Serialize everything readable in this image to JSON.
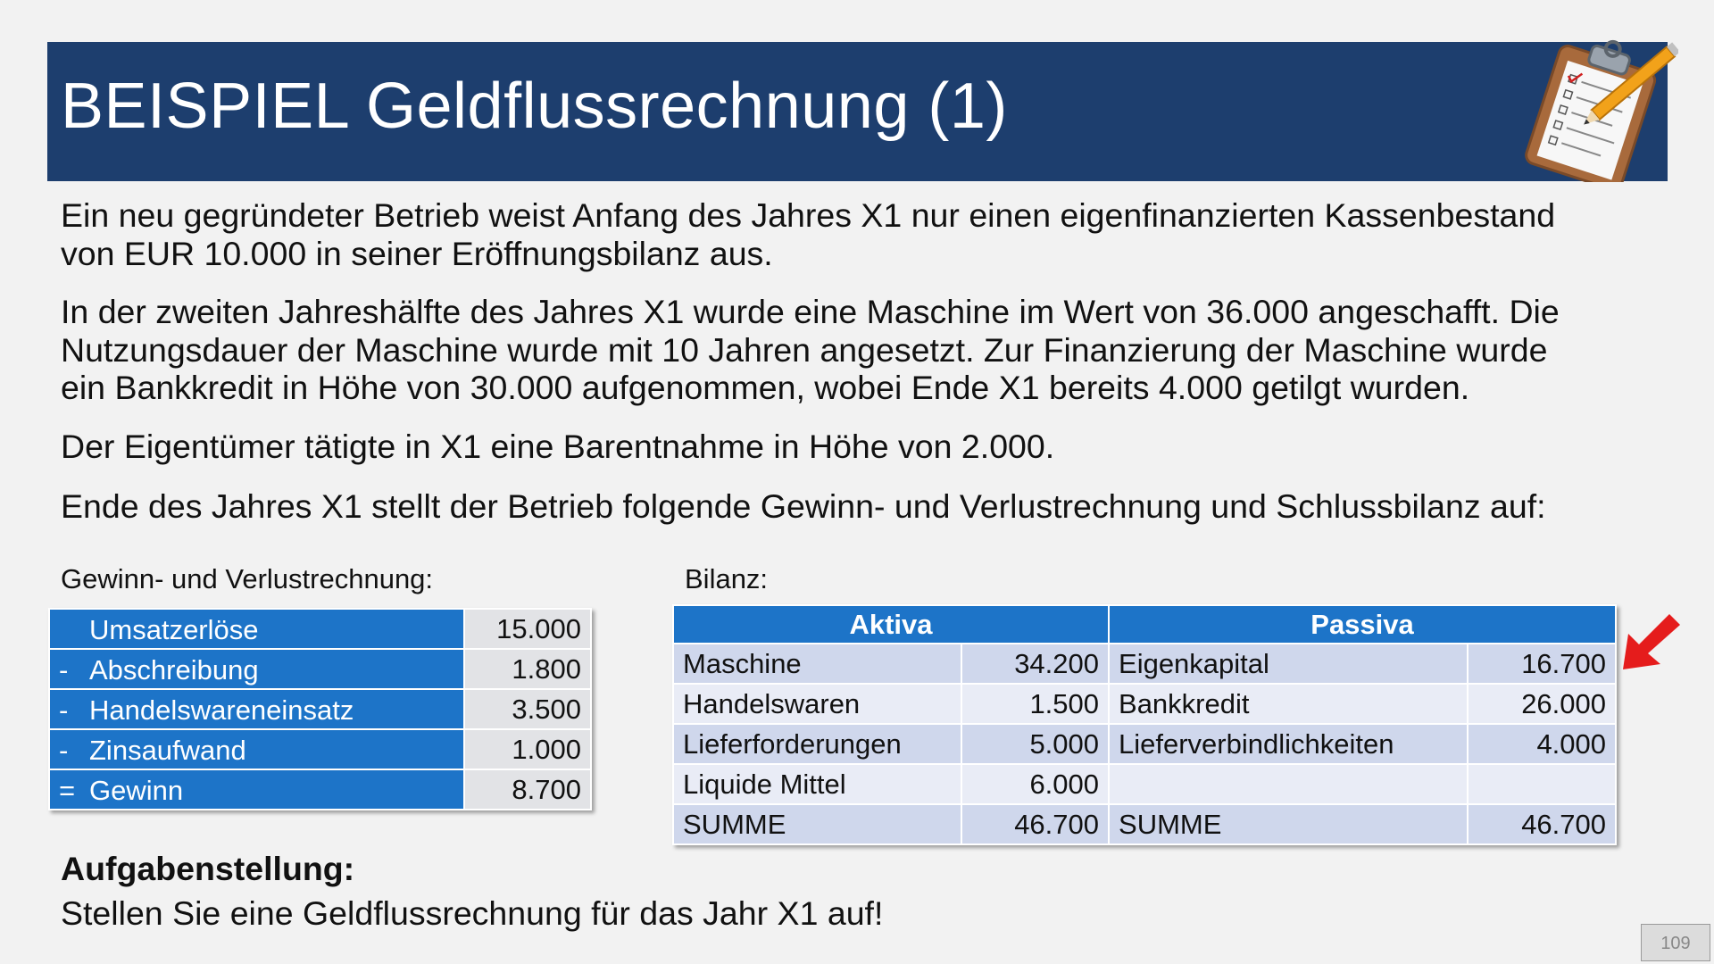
{
  "title": "BEISPIEL Geldflussrechnung (1)",
  "icons": {
    "header_illustration": "clipboard-checklist-pencil-icon",
    "pointer": "arrow-pointer-icon"
  },
  "colors": {
    "title_bar": "#1d3e6e",
    "table_header": "#1d74c8",
    "arrow": "#e51c1c"
  },
  "paragraphs": [
    [
      "Ein neu gegründeter Betrieb weist Anfang des Jahres X1 nur einen eigenfinanzierten Kassenbestand",
      "von EUR 10.000 in seiner Eröffnungsbilanz aus."
    ],
    [
      "In der zweiten Jahreshälfte des Jahres X1 wurde eine Maschine im Wert von 36.000 angeschafft. Die",
      "Nutzungsdauer der Maschine wurde mit 10 Jahren angesetzt. Zur Finanzierung der Maschine wurde",
      "ein Bankkredit in Höhe von 30.000 aufgenommen, wobei Ende X1 bereits 4.000 getilgt wurden."
    ],
    [
      "Der Eigentümer tätigte in X1 eine Barentnahme in Höhe von 2.000."
    ],
    [
      "Ende des Jahres X1 stellt der Betrieb folgende Gewinn- und Verlustrechnung und Schlussbilanz auf:"
    ]
  ],
  "guv": {
    "label": "Gewinn- und Verlustrechnung:",
    "rows": [
      {
        "op": "",
        "label": "Umsatzerlöse",
        "value": "15.000"
      },
      {
        "op": "-",
        "label": "Abschreibung",
        "value": "1.800"
      },
      {
        "op": "-",
        "label": "Handelswareneinsatz",
        "value": "3.500"
      },
      {
        "op": "-",
        "label": "Zinsaufwand",
        "value": "1.000"
      },
      {
        "op": "=",
        "label": "Gewinn",
        "value": "8.700"
      }
    ]
  },
  "bilanz": {
    "label": "Bilanz:",
    "header_left": "Aktiva",
    "header_right": "Passiva",
    "rows": [
      {
        "a_label": "Maschine",
        "a_value": "34.200",
        "p_label": "Eigenkapital",
        "p_value": "16.700"
      },
      {
        "a_label": "Handelswaren",
        "a_value": "1.500",
        "p_label": "Bankkredit",
        "p_value": "26.000"
      },
      {
        "a_label": "Lieferforderungen",
        "a_value": "5.000",
        "p_label": "Lieferverbindlichkeiten",
        "p_value": "4.000"
      },
      {
        "a_label": "Liquide Mittel",
        "a_value": "6.000",
        "p_label": "",
        "p_value": ""
      },
      {
        "a_label": "SUMME",
        "a_value": "46.700",
        "p_label": "SUMME",
        "p_value": "46.700"
      }
    ]
  },
  "task": {
    "heading": "Aufgabenstellung:",
    "text": "Stellen Sie eine Geldflussrechnung für das Jahr X1 auf!"
  },
  "page_number": "109"
}
